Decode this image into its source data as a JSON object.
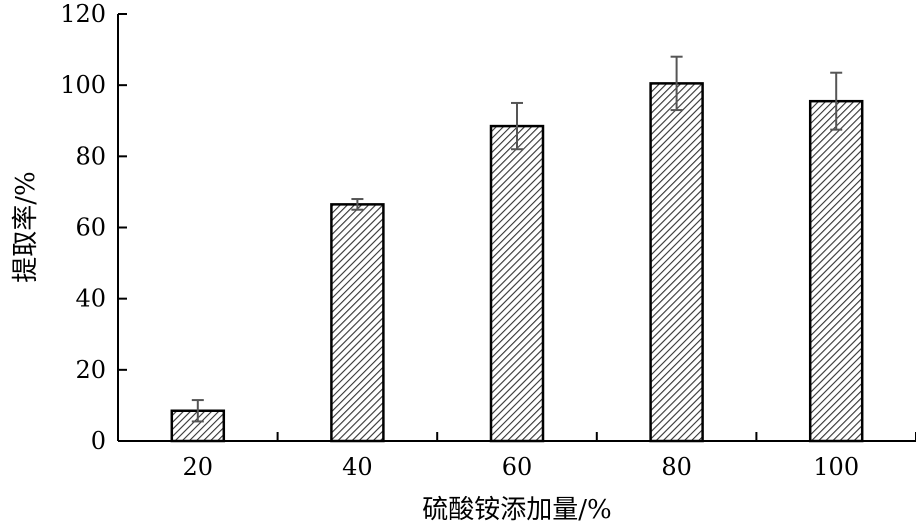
{
  "chart_data": {
    "type": "bar",
    "categories": [
      "20",
      "40",
      "60",
      "80",
      "100"
    ],
    "values": [
      8.5,
      66.5,
      88.5,
      100.5,
      95.5
    ],
    "error": [
      3,
      1.5,
      6.5,
      7.5,
      8
    ],
    "title": "",
    "xlabel": "硫酸铵添加量/%",
    "ylabel": "提取率/%",
    "ylim": [
      0,
      120
    ],
    "yticks": [
      0,
      20,
      40,
      60,
      80,
      100,
      120
    ],
    "grid": false,
    "legend": "none",
    "bar_fill": "hatched",
    "colors": {
      "bar_border": "#000000",
      "hatch": "#333333",
      "error_bar": "#555555"
    }
  }
}
